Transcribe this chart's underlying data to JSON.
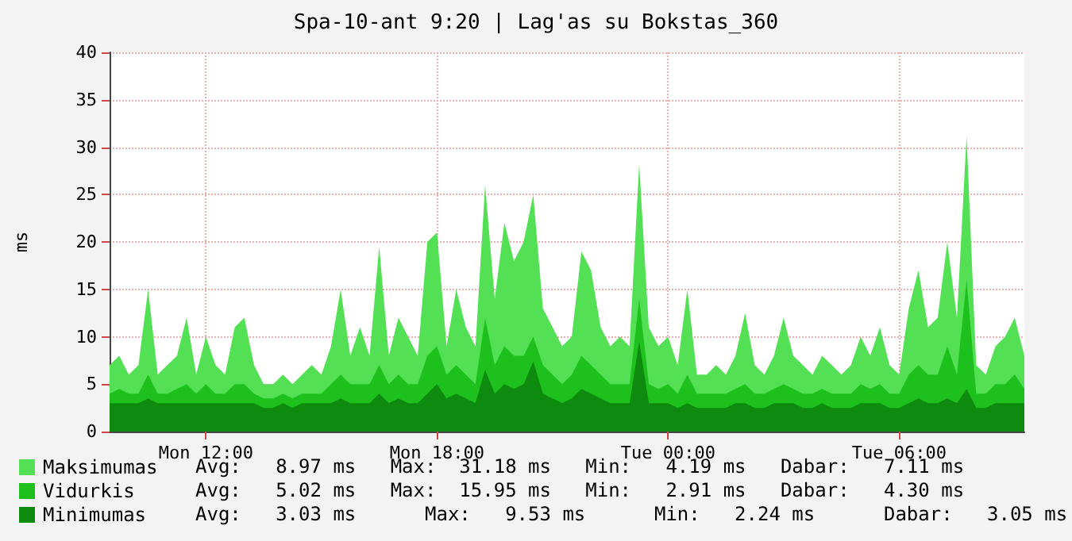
{
  "chart_data": {
    "type": "area",
    "title": "Spa-10-ant 9:20 | Lag'as su Bokstas_360",
    "ylabel": "ms",
    "categories": [
      null,
      null,
      null,
      null,
      null,
      null,
      null,
      null,
      null,
      null,
      "Mon 12:00",
      null,
      null,
      null,
      null,
      null,
      null,
      null,
      null,
      null,
      null,
      null,
      null,
      null,
      null,
      null,
      null,
      null,
      null,
      null,
      null,
      null,
      null,
      null,
      "Mon 18:00",
      null,
      null,
      null,
      null,
      null,
      null,
      null,
      null,
      null,
      null,
      null,
      null,
      null,
      null,
      null,
      null,
      null,
      null,
      null,
      null,
      null,
      null,
      null,
      "Tue 00:00",
      null,
      null,
      null,
      null,
      null,
      null,
      null,
      null,
      null,
      null,
      null,
      null,
      null,
      null,
      null,
      null,
      null,
      null,
      null,
      null,
      null,
      null,
      null,
      "Tue 06:00",
      null,
      null,
      null,
      null,
      null,
      null,
      null,
      null,
      null,
      null,
      null,
      null,
      null
    ],
    "series": [
      {
        "name": "Maksimumas",
        "color": "#54e054",
        "values": [
          7,
          8,
          6,
          7,
          15,
          6,
          7,
          8,
          12,
          6,
          10,
          7,
          6,
          11,
          12,
          7,
          5,
          5,
          6,
          5,
          6,
          7,
          6,
          9,
          15,
          8,
          11,
          8,
          19.5,
          8,
          12,
          10,
          8,
          20,
          21,
          9,
          15,
          11,
          9,
          26,
          14,
          22,
          18,
          20,
          25,
          13,
          11,
          9,
          10,
          19,
          17,
          11,
          9,
          10,
          9,
          28.2,
          11,
          9,
          10,
          7,
          15,
          6,
          6,
          7,
          6,
          8,
          12.5,
          7,
          6,
          8,
          12,
          8,
          7,
          6,
          8,
          7,
          6,
          7,
          10,
          8,
          11,
          7,
          6,
          13,
          17,
          11,
          12,
          20,
          12,
          31.2,
          7,
          6,
          9,
          10,
          12,
          8
        ]
      },
      {
        "name": "Vidurkis",
        "color": "#1ec01e",
        "values": [
          4,
          4.5,
          4,
          4,
          6,
          4,
          4,
          4.5,
          5,
          4,
          5,
          4,
          4,
          5,
          5,
          4,
          3.5,
          3.5,
          4,
          3.5,
          4,
          4,
          4,
          5,
          6,
          5,
          5,
          5,
          7,
          5,
          6,
          5,
          5,
          8,
          9,
          6,
          7,
          6,
          5,
          12,
          7,
          9,
          8,
          8,
          10,
          7,
          6,
          5,
          6,
          8,
          7,
          6,
          5,
          5,
          5,
          14,
          5,
          4.5,
          5,
          4,
          6,
          4,
          4,
          4,
          4,
          4.5,
          5,
          4,
          4,
          4.5,
          5,
          4.5,
          4,
          4,
          4.5,
          4,
          4,
          4,
          5,
          4.5,
          5,
          4,
          4,
          6,
          7,
          6,
          6,
          9,
          6,
          16,
          4,
          4,
          5,
          5,
          6,
          4.5
        ]
      },
      {
        "name": "Minimumas",
        "color": "#0e8a0e",
        "values": [
          3,
          3,
          3,
          3,
          3.5,
          3,
          3,
          3,
          3,
          3,
          3,
          3,
          3,
          3,
          3,
          3,
          2.5,
          2.5,
          3,
          2.5,
          3,
          3,
          3,
          3,
          3.5,
          3,
          3,
          3,
          4,
          3,
          3.5,
          3,
          3,
          4,
          5,
          3.5,
          4,
          3.5,
          3,
          6.5,
          4,
          5,
          4.5,
          5,
          7.4,
          4,
          3.5,
          3,
          3.5,
          4.5,
          4,
          3.5,
          3,
          3,
          3,
          9.5,
          3,
          3,
          3,
          2.5,
          3,
          2.5,
          2.5,
          2.5,
          2.5,
          3,
          3,
          2.5,
          2.5,
          3,
          3,
          3,
          2.5,
          2.5,
          3,
          2.5,
          2.5,
          2.5,
          3,
          3,
          3,
          2.5,
          2.5,
          3,
          3.5,
          3,
          3,
          3.5,
          3,
          4.5,
          2.5,
          2.5,
          3,
          3,
          3,
          3
        ]
      }
    ],
    "ylim": [
      0,
      40
    ],
    "yticks": [
      0,
      5,
      10,
      15,
      20,
      25,
      30,
      35,
      40
    ],
    "grid": true,
    "legend": "bottom",
    "annotations": [
      "Avg:   8.97 ms   Max:  31.18 ms   Min:   4.19 ms   Dabar:   7.11 ms",
      "Avg:   5.02 ms   Max:  15.95 ms   Min:   2.91 ms   Dabar:   4.30 ms",
      "Avg:   3.03 ms      Max:   9.53 ms      Min:   2.24 ms      Dabar:   3.05 ms"
    ]
  }
}
